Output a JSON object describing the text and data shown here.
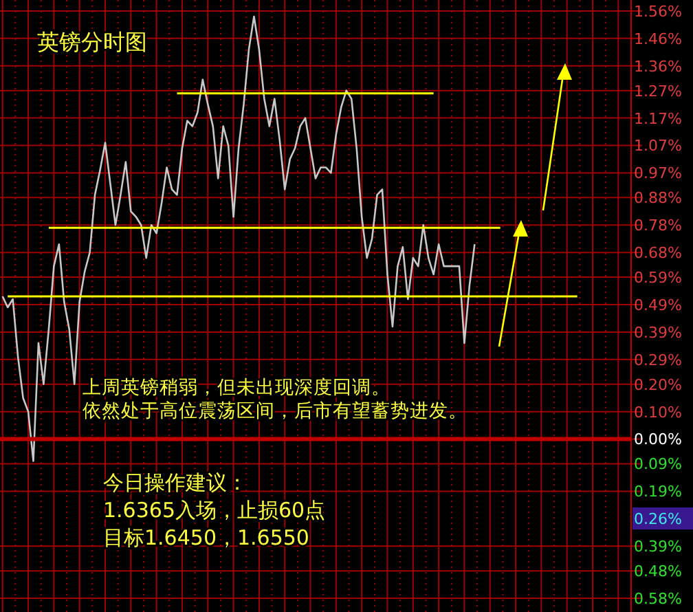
{
  "chart_data": {
    "type": "line",
    "title": "英镑分时图",
    "categories": [
      null,
      null,
      null,
      null,
      null,
      null,
      null,
      null,
      null,
      null,
      null,
      null,
      null,
      null,
      null,
      null,
      null,
      null,
      null,
      null,
      null,
      null,
      null,
      null,
      null,
      null,
      null,
      null,
      null,
      null,
      null,
      null,
      null,
      null,
      null,
      null,
      null,
      null,
      null,
      null,
      null,
      null,
      null,
      null,
      null,
      null,
      null,
      null,
      null,
      null,
      null,
      null,
      null,
      null,
      null,
      null,
      null,
      null,
      null,
      null,
      null,
      null,
      null,
      null,
      null,
      null,
      null,
      null,
      null,
      null,
      null,
      null,
      null,
      null,
      null,
      null,
      null,
      null,
      null,
      null,
      null,
      null,
      null,
      null,
      null,
      null,
      null,
      null,
      null,
      null,
      null,
      null,
      null,
      null,
      null,
      null,
      null,
      null,
      null,
      null,
      null,
      null,
      null,
      null,
      null,
      null,
      null,
      null,
      null,
      null,
      null,
      null,
      null,
      null,
      null,
      null,
      null,
      null,
      null,
      null,
      null,
      null,
      null
    ],
    "series": [
      {
        "color": "#c8c8c8",
        "values": [
          0.52,
          0.48,
          0.51,
          0.3,
          0.15,
          0.1,
          -0.08,
          0.35,
          0.2,
          0.4,
          0.63,
          0.71,
          0.5,
          0.4,
          0.2,
          0.5,
          0.61,
          0.68,
          0.89,
          0.98,
          1.08,
          0.93,
          0.78,
          0.89,
          1.01,
          0.83,
          0.81,
          0.78,
          0.66,
          0.78,
          0.75,
          0.86,
          0.99,
          0.91,
          0.89,
          1.06,
          1.16,
          1.14,
          1.19,
          1.31,
          1.22,
          1.14,
          0.95,
          1.14,
          1.07,
          0.81,
          1.06,
          1.22,
          1.42,
          1.54,
          1.42,
          1.24,
          1.14,
          1.24,
          1.09,
          0.91,
          1.02,
          1.06,
          1.14,
          1.17,
          1.06,
          0.95,
          0.99,
          0.99,
          0.97,
          1.11,
          1.21,
          1.27,
          1.24,
          1.06,
          0.81,
          0.66,
          0.73,
          0.89,
          0.91,
          0.6,
          0.41,
          0.63,
          0.7,
          0.51,
          0.66,
          0.63,
          0.78,
          0.66,
          0.6,
          0.71,
          0.63,
          0.63,
          0.63,
          0.63,
          0.35,
          0.56,
          0.71,
          null,
          null,
          null,
          null,
          null,
          null,
          null,
          null,
          null,
          null,
          null,
          null,
          null,
          null,
          null,
          null,
          null,
          null,
          null,
          null,
          null,
          null,
          null,
          null,
          null,
          null,
          null,
          null,
          null,
          null
        ]
      },
      {
        "type": "line",
        "color": "#ffff00",
        "values": [
          null,
          null,
          null,
          null,
          null,
          null,
          null,
          null,
          null,
          null,
          null,
          null,
          null,
          null,
          null,
          null,
          null,
          null,
          null,
          null,
          null,
          null,
          null,
          null,
          null,
          null,
          null,
          null,
          null,
          null,
          null,
          null,
          null,
          null,
          1.26,
          1.26,
          1.26,
          1.26,
          1.26,
          1.26,
          1.26,
          1.26,
          1.26,
          1.26,
          1.26,
          1.26,
          1.26,
          1.26,
          1.26,
          1.26,
          1.26,
          1.26,
          1.26,
          1.26,
          1.26,
          1.26,
          1.26,
          1.26,
          1.26,
          1.26,
          1.26,
          1.26,
          1.26,
          1.26,
          1.26,
          1.26,
          1.26,
          1.26,
          1.26,
          1.26,
          1.26,
          1.26,
          1.26,
          1.26,
          1.26,
          1.26,
          1.26,
          1.26,
          1.26,
          1.26,
          1.26,
          1.26,
          1.26,
          1.26,
          1.26,
          null,
          null,
          null,
          null,
          null,
          null,
          null,
          null,
          null,
          null,
          null,
          null,
          null,
          null,
          null,
          null,
          null,
          null,
          null,
          null,
          null,
          null,
          null,
          null,
          null,
          null,
          null,
          null,
          null,
          null,
          null,
          null,
          null,
          null,
          null,
          null,
          null,
          null
        ]
      },
      {
        "type": "line",
        "color": "#ffff00",
        "values": [
          null,
          null,
          null,
          null,
          null,
          null,
          null,
          null,
          null,
          0.77,
          0.77,
          0.77,
          0.77,
          0.77,
          0.77,
          0.77,
          0.77,
          0.77,
          0.77,
          0.77,
          0.77,
          0.77,
          0.77,
          0.77,
          0.77,
          0.77,
          0.77,
          0.77,
          0.77,
          0.77,
          0.77,
          0.77,
          0.77,
          0.77,
          0.77,
          0.77,
          0.77,
          0.77,
          0.77,
          0.77,
          0.77,
          0.77,
          0.77,
          0.77,
          0.77,
          0.77,
          0.77,
          0.77,
          0.77,
          0.77,
          0.77,
          0.77,
          0.77,
          0.77,
          0.77,
          0.77,
          0.77,
          0.77,
          0.77,
          0.77,
          0.77,
          0.77,
          0.77,
          0.77,
          0.77,
          0.77,
          0.77,
          0.77,
          0.77,
          0.77,
          0.77,
          0.77,
          0.77,
          0.77,
          0.77,
          0.77,
          0.77,
          0.77,
          0.77,
          0.77,
          0.77,
          0.77,
          0.77,
          0.77,
          0.77,
          0.77,
          0.77,
          0.77,
          0.77,
          0.77,
          0.77,
          0.77,
          0.77,
          0.77,
          0.77,
          0.77,
          0.77,
          0.77,
          null,
          null,
          null,
          null,
          null,
          null,
          null,
          null,
          null,
          null,
          null,
          null,
          null,
          null,
          null,
          null,
          null,
          null,
          null,
          null,
          null,
          null,
          null,
          null,
          null
        ]
      },
      {
        "type": "line",
        "color": "#ffff00",
        "values": [
          null,
          0.52,
          0.52,
          0.52,
          0.52,
          0.52,
          0.52,
          0.52,
          0.52,
          0.52,
          0.52,
          0.52,
          0.52,
          0.52,
          0.52,
          0.52,
          0.52,
          0.52,
          0.52,
          0.52,
          0.52,
          0.52,
          0.52,
          0.52,
          0.52,
          0.52,
          0.52,
          0.52,
          0.52,
          0.52,
          0.52,
          0.52,
          0.52,
          0.52,
          0.52,
          0.52,
          0.52,
          0.52,
          0.52,
          0.52,
          0.52,
          0.52,
          0.52,
          0.52,
          0.52,
          0.52,
          0.52,
          0.52,
          0.52,
          0.52,
          0.52,
          0.52,
          0.52,
          0.52,
          0.52,
          0.52,
          0.52,
          0.52,
          0.52,
          0.52,
          0.52,
          0.52,
          0.52,
          0.52,
          0.52,
          0.52,
          0.52,
          0.52,
          0.52,
          0.52,
          0.52,
          0.52,
          0.52,
          0.52,
          0.52,
          0.52,
          0.52,
          0.52,
          0.52,
          0.52,
          0.52,
          0.52,
          0.52,
          0.52,
          0.52,
          0.52,
          0.52,
          0.52,
          0.52,
          0.52,
          0.52,
          0.52,
          0.52,
          0.52,
          0.52,
          0.52,
          0.52,
          0.52,
          0.52,
          0.52,
          0.52,
          0.52,
          0.52,
          0.52,
          0.52,
          0.52,
          0.52,
          0.52,
          0.52,
          0.52,
          0.52,
          0.52,
          0.52,
          null,
          null,
          null,
          null,
          null,
          null,
          null,
          null,
          null,
          null
        ]
      }
    ],
    "ylim": [
      -0.63,
      1.6
    ],
    "yticks": [
      {
        "value": 1.56,
        "label": "1.56%"
      },
      {
        "value": 1.46,
        "label": "1.46%"
      },
      {
        "value": 1.36,
        "label": "1.36%"
      },
      {
        "value": 1.27,
        "label": "1.27%"
      },
      {
        "value": 1.17,
        "label": "1.17%"
      },
      {
        "value": 1.07,
        "label": "1.07%"
      },
      {
        "value": 0.97,
        "label": "0.97%"
      },
      {
        "value": 0.88,
        "label": "0.88%"
      },
      {
        "value": 0.78,
        "label": "0.78%"
      },
      {
        "value": 0.68,
        "label": "0.68%"
      },
      {
        "value": 0.59,
        "label": "0.59%"
      },
      {
        "value": 0.49,
        "label": "0.49%"
      },
      {
        "value": 0.39,
        "label": "0.39%"
      },
      {
        "value": 0.29,
        "label": "0.29%"
      },
      {
        "value": 0.2,
        "label": "0.20%"
      },
      {
        "value": 0.1,
        "label": "0.10%"
      },
      {
        "value": 0,
        "label": "0.00%"
      },
      {
        "value": -0.09,
        "label": "0.09%"
      },
      {
        "value": -0.19,
        "label": "0.19%"
      },
      {
        "value": -0.39,
        "label": "0.39%"
      },
      {
        "value": -0.48,
        "label": "0.48%"
      },
      {
        "value": -0.58,
        "label": "0.58%"
      }
    ],
    "ref_lines": [
      {
        "axis": "y",
        "value": 0,
        "color": "#c00000"
      }
    ],
    "annotations": [
      "上周英镑稍弱，但未出现深度回调。",
      "依然处于高位震荡区间，后市有望蓄势进发。",
      "今日操作建议：",
      "1.6365入场，止损60点",
      "目标1.6450，1.6550",
      "0.26%"
    ],
    "grid": true,
    "tick_labels": "y"
  }
}
